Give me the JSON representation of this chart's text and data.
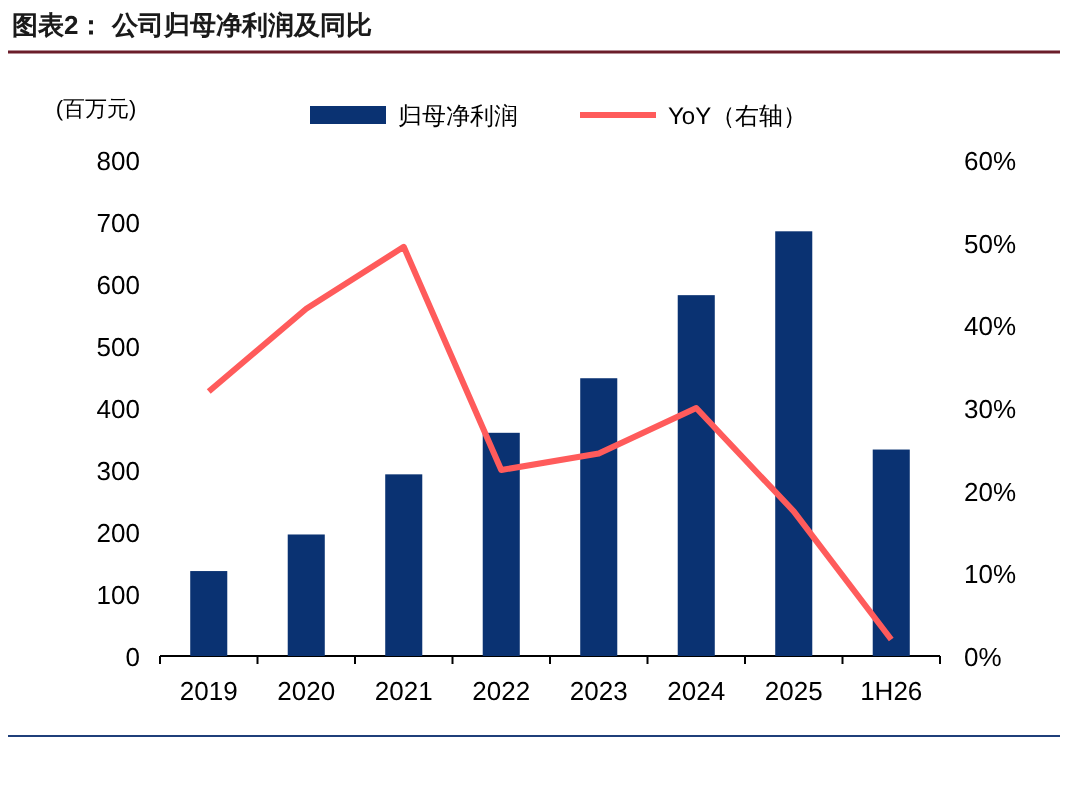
{
  "chart_data": {
    "type": "bar",
    "title": "图表2：  公司归母净利润及同比",
    "ylabel": "(百万元)",
    "categories": [
      "2019",
      "2020",
      "2021",
      "2022",
      "2023",
      "2024",
      "2025",
      "1H26"
    ],
    "series": [
      {
        "name": "归母净利润",
        "color": "#0a3272",
        "values": [
          137,
          196,
          293,
          360,
          448,
          582,
          685,
          333
        ]
      },
      {
        "name": "YoY（右轴）",
        "type": "line",
        "axis": "y2",
        "color": "#ff5b5b",
        "values": [
          32,
          42,
          49.5,
          22.5,
          24.5,
          30,
          17.5,
          2
        ]
      }
    ],
    "ylim": [
      0,
      800
    ],
    "yticks": [
      0,
      100,
      200,
      300,
      400,
      500,
      600,
      700,
      800
    ],
    "y2lim": [
      0,
      60
    ],
    "y2ticks": [
      {
        "value": 0,
        "label": "0%"
      },
      {
        "value": 10,
        "label": "10%"
      },
      {
        "value": 20,
        "label": "20%"
      },
      {
        "value": 30,
        "label": "30%"
      },
      {
        "value": 40,
        "label": "40%"
      },
      {
        "value": 50,
        "label": "50%"
      },
      {
        "value": 60,
        "label": "60%"
      }
    ],
    "legend": "top",
    "grid": false
  }
}
